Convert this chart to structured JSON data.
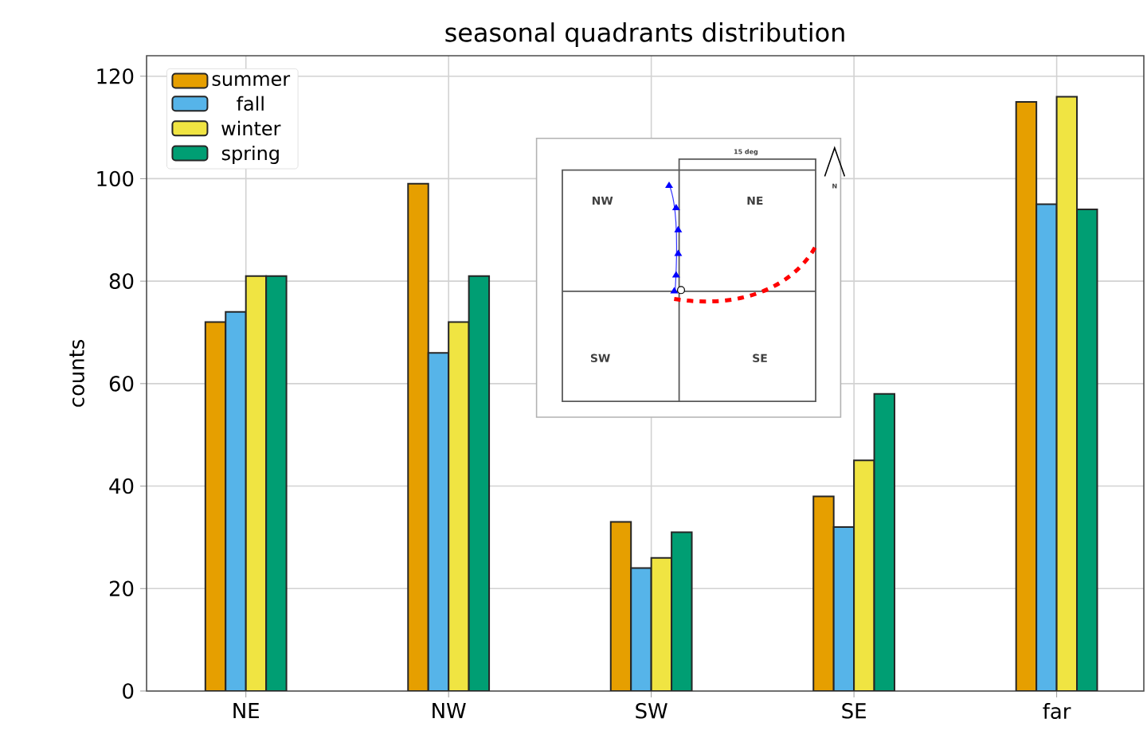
{
  "chart_data": {
    "type": "bar",
    "title": "seasonal quadrants distribution",
    "ylabel": "counts",
    "categories": [
      "NE",
      "NW",
      "SW",
      "SE",
      "far"
    ],
    "series": [
      {
        "name": "summer",
        "color": "#e69f00",
        "values": [
          72,
          99,
          33,
          38,
          115
        ]
      },
      {
        "name": "fall",
        "color": "#56b4e9",
        "values": [
          74,
          66,
          24,
          32,
          95
        ]
      },
      {
        "name": "winter",
        "color": "#f0e442",
        "values": [
          81,
          72,
          26,
          45,
          116
        ]
      },
      {
        "name": "spring",
        "color": "#009e73",
        "values": [
          81,
          81,
          31,
          58,
          94
        ]
      }
    ],
    "ylim": [
      0,
      124
    ],
    "yticks": [
      0,
      20,
      40,
      60,
      80,
      100,
      120
    ],
    "grid": true,
    "legend": "top left",
    "annotations": [
      "NW",
      "NE",
      "SW",
      "SE",
      "15 deg",
      "N"
    ]
  }
}
